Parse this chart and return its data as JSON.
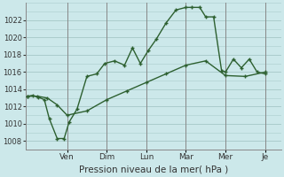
{
  "xlabel": "Pression niveau de la mer( hPa )",
  "bg_color": "#cce8ea",
  "grid_color": "#aacccc",
  "line_color": "#2d6030",
  "ylim": [
    1007,
    1024
  ],
  "yticks": [
    1008,
    1010,
    1012,
    1014,
    1016,
    1018,
    1020,
    1022
  ],
  "day_labels": [
    "Ven",
    "Dim",
    "Lun",
    "Mar",
    "Mer",
    "Je"
  ],
  "day_positions": [
    2.0,
    4.0,
    6.0,
    8.0,
    10.0,
    12.0
  ],
  "xlim": [
    -0.1,
    12.8
  ],
  "line1_x": [
    0.0,
    0.25,
    0.55,
    0.85,
    1.1,
    1.5,
    1.85,
    2.1,
    2.5,
    3.0,
    3.5,
    3.9,
    4.4,
    4.9,
    5.3,
    5.7,
    6.1,
    6.5,
    7.0,
    7.5,
    8.0,
    8.3,
    8.7,
    9.0,
    9.4,
    9.8,
    10.0,
    10.4,
    10.8,
    11.2,
    11.6,
    12.0
  ],
  "line1_y": [
    1013.2,
    1013.3,
    1013.1,
    1012.8,
    1010.6,
    1008.3,
    1008.3,
    1010.2,
    1011.7,
    1015.5,
    1015.8,
    1017.0,
    1017.3,
    1016.8,
    1018.8,
    1017.0,
    1018.5,
    1019.8,
    1021.7,
    1023.2,
    1023.5,
    1023.5,
    1023.5,
    1022.4,
    1022.4,
    1016.2,
    1016.0,
    1017.5,
    1016.5,
    1017.5,
    1016.0,
    1015.8
  ],
  "line2_x": [
    0.0,
    0.5,
    1.0,
    1.5,
    2.0,
    3.0,
    4.0,
    5.0,
    6.0,
    7.0,
    8.0,
    9.0,
    10.0,
    11.0,
    12.0
  ],
  "line2_y": [
    1013.2,
    1013.2,
    1013.0,
    1012.2,
    1011.0,
    1011.5,
    1012.8,
    1013.8,
    1014.8,
    1015.8,
    1016.8,
    1017.3,
    1015.6,
    1015.5,
    1016.0
  ]
}
